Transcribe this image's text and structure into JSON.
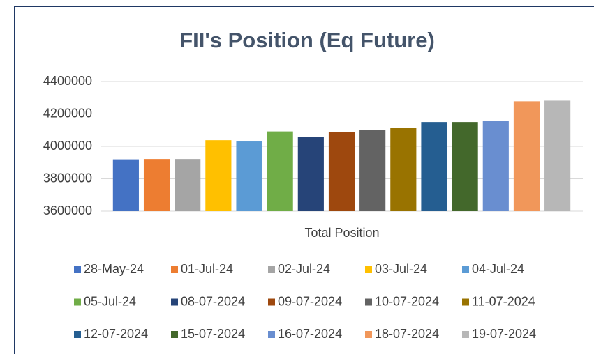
{
  "chart_data": {
    "type": "bar",
    "title": "FII's Position (Eq Future)",
    "categories": [
      "Total Position"
    ],
    "series": [
      {
        "name": "28-May-24",
        "color": "#4472c4",
        "values": [
          3920000
        ]
      },
      {
        "name": "01-Jul-24",
        "color": "#ed7d31",
        "values": [
          3922000
        ]
      },
      {
        "name": "02-Jul-24",
        "color": "#a5a5a5",
        "values": [
          3922000
        ]
      },
      {
        "name": "03-Jul-24",
        "color": "#ffc000",
        "values": [
          4038000
        ]
      },
      {
        "name": "04-Jul-24",
        "color": "#5b9bd5",
        "values": [
          4030000
        ]
      },
      {
        "name": "05-Jul-24",
        "color": "#70ad47",
        "values": [
          4092000
        ]
      },
      {
        "name": "08-07-2024",
        "color": "#264478",
        "values": [
          4056000
        ]
      },
      {
        "name": "09-07-2024",
        "color": "#9e480e",
        "values": [
          4086000
        ]
      },
      {
        "name": "10-07-2024",
        "color": "#636363",
        "values": [
          4099000
        ]
      },
      {
        "name": "11-07-2024",
        "color": "#997300",
        "values": [
          4112000
        ]
      },
      {
        "name": "12-07-2024",
        "color": "#255e91",
        "values": [
          4150000
        ]
      },
      {
        "name": "15-07-2024",
        "color": "#43682b",
        "values": [
          4150000
        ]
      },
      {
        "name": "16-07-2024",
        "color": "#698ed0",
        "values": [
          4155000
        ]
      },
      {
        "name": "18-07-2024",
        "color": "#f1975a",
        "values": [
          4278000
        ]
      },
      {
        "name": "19-07-2024",
        "color": "#b7b7b7",
        "values": [
          4282000
        ]
      }
    ],
    "ylim": [
      3600000,
      4400000
    ],
    "yticks": [
      3600000,
      3800000,
      4000000,
      4200000,
      4400000
    ],
    "grid": true,
    "legend": "bottom"
  }
}
